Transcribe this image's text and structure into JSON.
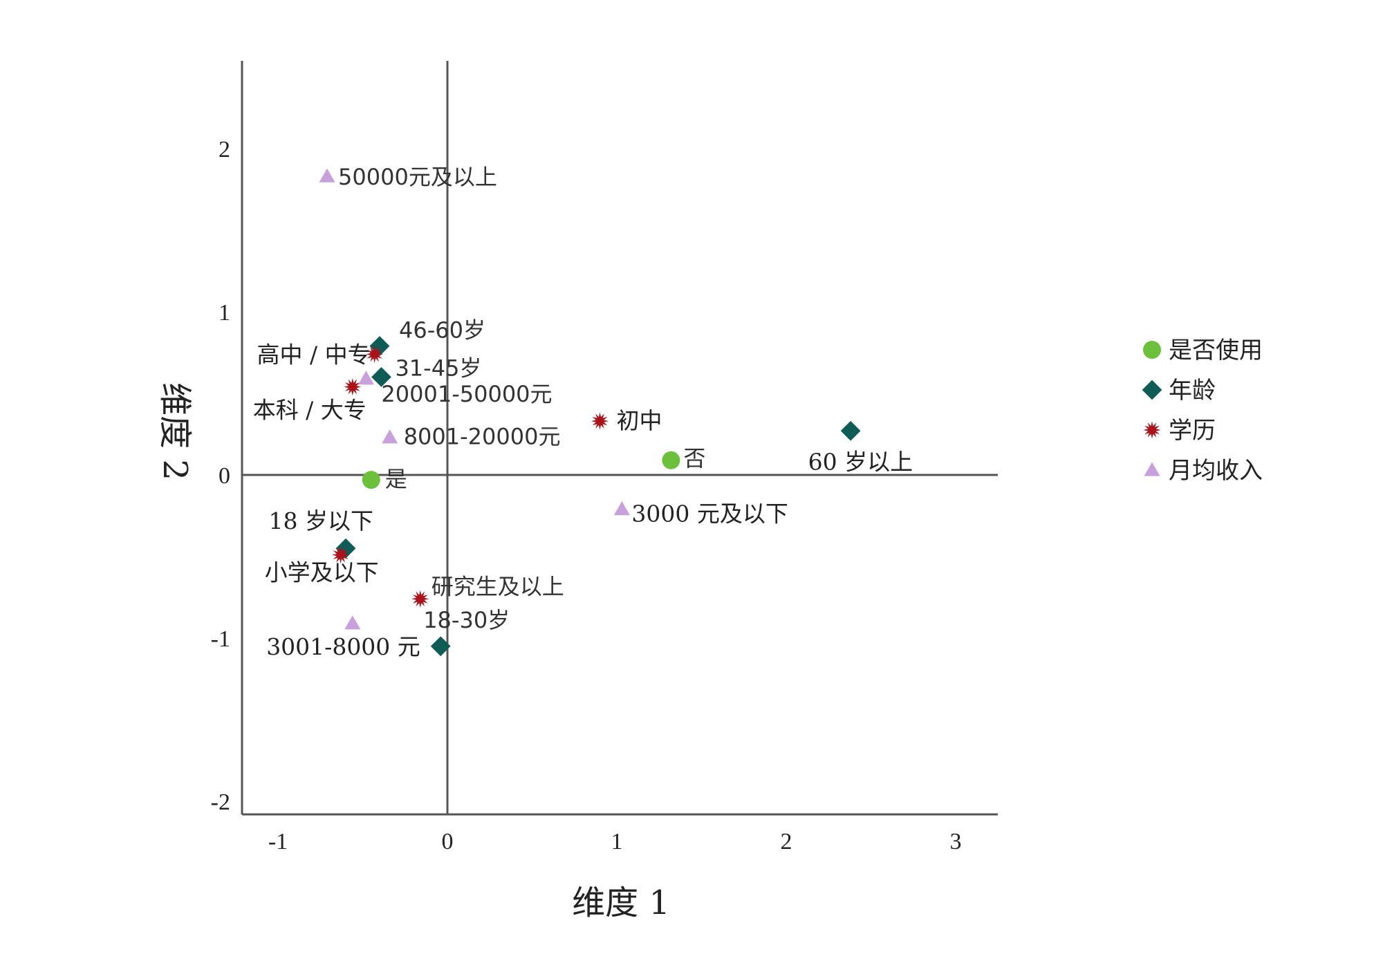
{
  "chart_data": {
    "type": "scatter",
    "title": "",
    "xlabel": "维度 1",
    "ylabel": "维度 2",
    "xlim": [
      -1.25,
      3.25
    ],
    "ylim": [
      -2,
      2.45
    ],
    "x_ticks": [
      "-1",
      "0",
      "1",
      "2",
      "3"
    ],
    "y_ticks": [
      "2",
      "1",
      "0",
      "-1",
      "-2"
    ],
    "grid": false,
    "legend_placement": "right",
    "series": [
      {
        "name": "是否使用",
        "marker": "circle",
        "color": "#6cc03c",
        "points": [
          {
            "label": "是",
            "x": -0.45,
            "y": -0.03
          },
          {
            "label": "否",
            "x": 1.32,
            "y": 0.09
          }
        ]
      },
      {
        "name": "年龄",
        "marker": "diamond",
        "color": "#0f5c57",
        "points": [
          {
            "label": "46-60岁",
            "x": -0.4,
            "y": 0.79
          },
          {
            "label": "31-45岁",
            "x": -0.39,
            "y": 0.6
          },
          {
            "label": "60 岁以上",
            "x": 2.38,
            "y": 0.27
          },
          {
            "label": "18 岁以下",
            "x": -0.6,
            "y": -0.45
          },
          {
            "label": "18-30岁",
            "x": -0.04,
            "y": -1.05
          }
        ]
      },
      {
        "name": "学历",
        "marker": "star",
        "color": "#a8131c",
        "points": [
          {
            "label": "高中 / 中专",
            "x": -0.43,
            "y": 0.74
          },
          {
            "label": "本科 / 大专",
            "x": -0.56,
            "y": 0.54
          },
          {
            "label": "初中",
            "x": 0.9,
            "y": 0.33
          },
          {
            "label": "小学及以下",
            "x": -0.63,
            "y": -0.49
          },
          {
            "label": "研究生及以上",
            "x": -0.16,
            "y": -0.76
          }
        ]
      },
      {
        "name": "月均收入",
        "marker": "triangle",
        "color": "#c8a0dc",
        "points": [
          {
            "label": "50000元及以上",
            "x": -0.71,
            "y": 1.83
          },
          {
            "label": "20001-50000元",
            "x": -0.48,
            "y": 0.59
          },
          {
            "label": "8001-20000元",
            "x": -0.34,
            "y": 0.23
          },
          {
            "label": "3000 元及以下",
            "x": 1.03,
            "y": -0.21
          },
          {
            "label": "3001-8000 元",
            "x": -0.56,
            "y": -0.91
          }
        ]
      }
    ]
  }
}
